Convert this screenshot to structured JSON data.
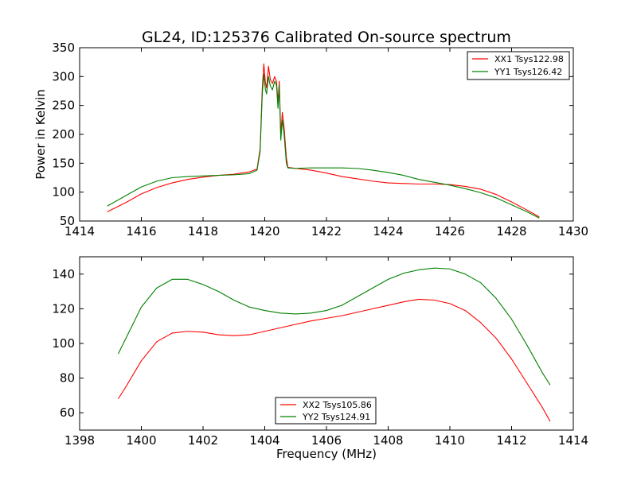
{
  "chart_data": [
    {
      "type": "line",
      "title": "GL24, ID:125376 Calibrated On-source spectrum",
      "xlabel": "",
      "ylabel": "Power in Kelvin",
      "xlim": [
        1414,
        1430
      ],
      "ylim": [
        50,
        350
      ],
      "xticks": [
        1414,
        1416,
        1418,
        1420,
        1422,
        1424,
        1426,
        1428,
        1430
      ],
      "yticks": [
        50,
        100,
        150,
        200,
        250,
        300,
        350
      ],
      "legend_position": "top-right",
      "series": [
        {
          "name": "XX1 Tsys122.98",
          "color": "#ff0000",
          "points": [
            [
              1414.9,
              66
            ],
            [
              1415.5,
              82
            ],
            [
              1416,
              97
            ],
            [
              1416.5,
              108
            ],
            [
              1417,
              116
            ],
            [
              1417.5,
              122
            ],
            [
              1418,
              126
            ],
            [
              1418.5,
              129
            ],
            [
              1419,
              131
            ],
            [
              1419.5,
              135
            ],
            [
              1419.75,
              140
            ],
            [
              1419.85,
              175
            ],
            [
              1419.92,
              280
            ],
            [
              1419.97,
              322
            ],
            [
              1420.02,
              290
            ],
            [
              1420.06,
              280
            ],
            [
              1420.12,
              318
            ],
            [
              1420.18,
              295
            ],
            [
              1420.25,
              288
            ],
            [
              1420.32,
              300
            ],
            [
              1420.38,
              292
            ],
            [
              1420.43,
              255
            ],
            [
              1420.47,
              292
            ],
            [
              1420.52,
              200
            ],
            [
              1420.57,
              238
            ],
            [
              1420.63,
              210
            ],
            [
              1420.7,
              160
            ],
            [
              1420.75,
              143
            ],
            [
              1421,
              141
            ],
            [
              1421.5,
              138
            ],
            [
              1422,
              133
            ],
            [
              1422.5,
              127
            ],
            [
              1423,
              123
            ],
            [
              1423.5,
              119
            ],
            [
              1424,
              116
            ],
            [
              1424.5,
              115
            ],
            [
              1425,
              114
            ],
            [
              1425.5,
              114
            ],
            [
              1426,
              113
            ],
            [
              1426.5,
              110
            ],
            [
              1427,
              105
            ],
            [
              1427.5,
              96
            ],
            [
              1428,
              83
            ],
            [
              1428.5,
              69
            ],
            [
              1428.9,
              57
            ]
          ]
        },
        {
          "name": "YY1 Tsys126.42",
          "color": "#008000",
          "points": [
            [
              1414.9,
              76
            ],
            [
              1415.5,
              94
            ],
            [
              1416,
              109
            ],
            [
              1416.5,
              119
            ],
            [
              1417,
              125
            ],
            [
              1417.5,
              127
            ],
            [
              1418,
              128
            ],
            [
              1418.5,
              129
            ],
            [
              1419,
              130
            ],
            [
              1419.5,
              132
            ],
            [
              1419.75,
              138
            ],
            [
              1419.85,
              170
            ],
            [
              1419.92,
              270
            ],
            [
              1419.97,
              304
            ],
            [
              1420.02,
              278
            ],
            [
              1420.06,
              270
            ],
            [
              1420.12,
              300
            ],
            [
              1420.18,
              284
            ],
            [
              1420.25,
              277
            ],
            [
              1420.32,
              292
            ],
            [
              1420.38,
              285
            ],
            [
              1420.43,
              245
            ],
            [
              1420.47,
              285
            ],
            [
              1420.52,
              190
            ],
            [
              1420.57,
              225
            ],
            [
              1420.63,
              198
            ],
            [
              1420.7,
              150
            ],
            [
              1420.75,
              142
            ],
            [
              1421,
              141
            ],
            [
              1421.5,
              142
            ],
            [
              1422,
              142
            ],
            [
              1422.5,
              142
            ],
            [
              1423,
              141
            ],
            [
              1423.5,
              138
            ],
            [
              1424,
              134
            ],
            [
              1424.5,
              129
            ],
            [
              1425,
              122
            ],
            [
              1425.5,
              117
            ],
            [
              1426,
              112
            ],
            [
              1426.5,
              106
            ],
            [
              1427,
              99
            ],
            [
              1427.5,
              90
            ],
            [
              1428,
              78
            ],
            [
              1428.5,
              66
            ],
            [
              1428.9,
              55
            ]
          ]
        }
      ]
    },
    {
      "type": "line",
      "title": "",
      "xlabel": "Frequency (MHz)",
      "ylabel": "",
      "xlim": [
        1398,
        1414
      ],
      "ylim": [
        50,
        150
      ],
      "xticks": [
        1398,
        1400,
        1402,
        1404,
        1406,
        1408,
        1410,
        1412,
        1414
      ],
      "yticks": [
        60,
        80,
        100,
        120,
        140
      ],
      "legend_position": "lower-center",
      "series": [
        {
          "name": "XX2 Tsys105.86",
          "color": "#ff0000",
          "points": [
            [
              1399.25,
              68
            ],
            [
              1399.5,
              75
            ],
            [
              1400,
              90
            ],
            [
              1400.5,
              101
            ],
            [
              1401,
              106
            ],
            [
              1401.5,
              107
            ],
            [
              1402,
              106.5
            ],
            [
              1402.5,
              105
            ],
            [
              1403,
              104.5
            ],
            [
              1403.5,
              105
            ],
            [
              1404,
              107
            ],
            [
              1404.5,
              109
            ],
            [
              1405,
              111
            ],
            [
              1405.5,
              113
            ],
            [
              1406,
              114.5
            ],
            [
              1406.5,
              116
            ],
            [
              1407,
              118
            ],
            [
              1407.5,
              120
            ],
            [
              1408,
              122
            ],
            [
              1408.5,
              124
            ],
            [
              1409,
              125.5
            ],
            [
              1409.5,
              125
            ],
            [
              1410,
              123
            ],
            [
              1410.5,
              119
            ],
            [
              1411,
              112
            ],
            [
              1411.5,
              103
            ],
            [
              1412,
              91
            ],
            [
              1412.5,
              77
            ],
            [
              1413,
              63
            ],
            [
              1413.25,
              55
            ]
          ]
        },
        {
          "name": "YY2 Tsys124.91",
          "color": "#008000",
          "points": [
            [
              1399.25,
              94
            ],
            [
              1399.5,
              103
            ],
            [
              1400,
              121
            ],
            [
              1400.5,
              132
            ],
            [
              1401,
              137
            ],
            [
              1401.5,
              137
            ],
            [
              1402,
              134
            ],
            [
              1402.5,
              130
            ],
            [
              1403,
              125
            ],
            [
              1403.5,
              121
            ],
            [
              1404,
              119
            ],
            [
              1404.5,
              117.5
            ],
            [
              1405,
              117
            ],
            [
              1405.5,
              117.5
            ],
            [
              1406,
              119
            ],
            [
              1406.5,
              122
            ],
            [
              1407,
              127
            ],
            [
              1407.5,
              132
            ],
            [
              1408,
              137
            ],
            [
              1408.5,
              140.5
            ],
            [
              1409,
              142.5
            ],
            [
              1409.5,
              143.5
            ],
            [
              1410,
              143
            ],
            [
              1410.5,
              140
            ],
            [
              1411,
              135
            ],
            [
              1411.5,
              126
            ],
            [
              1412,
              114
            ],
            [
              1412.5,
              99
            ],
            [
              1413,
              83
            ],
            [
              1413.25,
              76
            ]
          ]
        }
      ]
    }
  ]
}
